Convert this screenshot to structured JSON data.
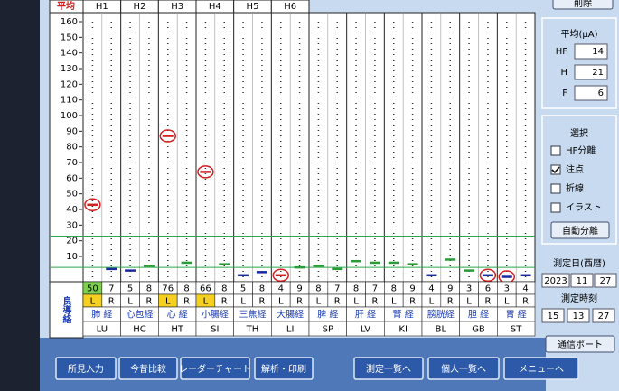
{
  "header": {
    "avg_label": "平均",
    "groups": [
      "H1",
      "H2",
      "H3",
      "H4",
      "H5",
      "H6"
    ]
  },
  "chart_data": {
    "type": "dash",
    "ylim": [
      -5,
      160
    ],
    "yticks": [
      10,
      20,
      30,
      40,
      50,
      60,
      70,
      80,
      90,
      100,
      110,
      120,
      130,
      140,
      150,
      160
    ],
    "normal_range": [
      3,
      23
    ],
    "values": [
      43,
      2,
      1,
      4,
      87,
      6,
      64,
      5,
      -2,
      0,
      -2,
      3,
      4,
      2,
      7,
      6,
      6,
      5,
      -2,
      8,
      1,
      -2,
      -3,
      -2
    ],
    "colors": [
      "#d02020",
      "#1a2a9c",
      "#1a2a9c",
      "#2a9a3a",
      "#d02020",
      "#2a9a3a",
      "#d02020",
      "#2a9a3a",
      "#1a2a9c",
      "#1a2a9c",
      "#d02020",
      "#2a9a3a",
      "#2a9a3a",
      "#2a9a3a",
      "#2a9a3a",
      "#2a9a3a",
      "#2a9a3a",
      "#2a9a3a",
      "#1a2a9c",
      "#2a9a3a",
      "#2a9a3a",
      "#1a2a9c",
      "#1a2a9c",
      "#1a2a9c"
    ],
    "circled": [
      true,
      false,
      false,
      false,
      true,
      false,
      true,
      false,
      false,
      false,
      true,
      false,
      false,
      false,
      false,
      false,
      false,
      false,
      false,
      false,
      false,
      true,
      true,
      false
    ]
  },
  "table": {
    "readings": [
      50,
      7,
      5,
      8,
      76,
      8,
      66,
      8,
      5,
      8,
      4,
      9,
      8,
      7,
      8,
      7,
      8,
      9,
      4,
      9,
      3,
      6,
      3,
      4
    ],
    "sides": [
      "L",
      "R",
      "L",
      "R",
      "L",
      "R",
      "L",
      "R",
      "L",
      "R",
      "L",
      "R",
      "L",
      "R",
      "L",
      "R",
      "L",
      "R",
      "L",
      "R",
      "L",
      "R",
      "L",
      "R"
    ],
    "meridians": [
      "肺 経",
      "心包経",
      "心 経",
      "小腸経",
      "三焦経",
      "大腸経",
      "脾 経",
      "肝 経",
      "腎 経",
      "膀胱経",
      "胆 経",
      "胃 経"
    ],
    "codes": [
      "LU",
      "HC",
      "HT",
      "SI",
      "TH",
      "LI",
      "SP",
      "LV",
      "KI",
      "BL",
      "GB",
      "ST"
    ]
  },
  "logo": "良導絡",
  "panel": {
    "delete": "削除",
    "avg_title": "平均(μA)",
    "avg": [
      {
        "label": "HF",
        "value": 14
      },
      {
        "label": "H",
        "value": 21
      },
      {
        "label": "F",
        "value": 6
      }
    ],
    "select_title": "選択",
    "options": [
      {
        "label": "HF分離",
        "checked": false
      },
      {
        "label": "注点",
        "checked": true
      },
      {
        "label": "折線",
        "checked": false
      },
      {
        "label": "イラスト",
        "checked": false
      }
    ],
    "auto": "自動分離",
    "date_title": "測定日(西暦)",
    "date": [
      2023,
      11,
      27
    ],
    "time_title": "測定時刻",
    "time": [
      15,
      13,
      27
    ],
    "port": "通信ポート"
  },
  "buttons": [
    "所見入力",
    "今昔比較",
    "レーダーチャート",
    "解析・印刷",
    "測定一覧へ",
    "個人一覧へ",
    "メニューへ"
  ]
}
